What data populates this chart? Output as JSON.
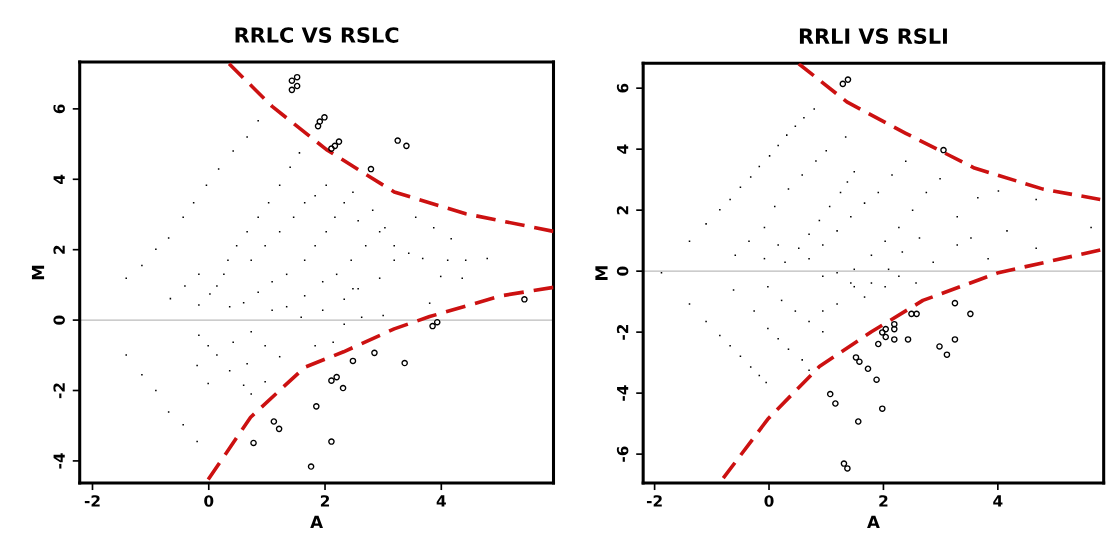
{
  "chart_data": [
    {
      "type": "scatter",
      "title": "RRLC VS RSLC",
      "xlabel": "A",
      "ylabel": "M",
      "xlim": [
        -2.22,
        5.93
      ],
      "ylim": [
        -4.63,
        7.33
      ],
      "xticks": [
        -2,
        0,
        2,
        4
      ],
      "yticks": [
        -4,
        -2,
        0,
        2,
        4,
        6
      ],
      "grid": false,
      "ref_lines": [
        {
          "axis": "y",
          "value": 0,
          "color": "#bbbbbb"
        }
      ],
      "series": [
        {
          "type": "scatter",
          "marker": "square",
          "color": "#000000",
          "x": [
            -1.42,
            -1.15,
            -0.91,
            -0.69,
            -0.44,
            -0.26,
            -0.04,
            0.17,
            0.42,
            0.66,
            0.85,
            -1.42,
            -1.15,
            -0.91,
            -0.69,
            -0.44,
            -0.2,
            -0.66,
            -0.41,
            -0.17,
            -0.17,
            0.02,
            0.14,
            0.26,
            0.33,
            0.48,
            0.66,
            0.85,
            1.03,
            1.22,
            1.4,
            1.56,
            -0.01,
            0.14,
            0.36,
            0.6,
            0.73,
            -0.17,
            -0.2,
            -0.01,
            0.36,
            0.6,
            0.85,
            1.09,
            1.34,
            1.65,
            1.83,
            2.02,
            2.17,
            2.33,
            2.48,
            0.73,
            0.97,
            1.22,
            1.46,
            1.65,
            1.83,
            2.02,
            1.09,
            1.34,
            1.65,
            1.96,
            2.2,
            2.45,
            2.7,
            2.94,
            1.59,
            1.96,
            2.33,
            2.57,
            2.94,
            3.19,
            3.44,
            3.68,
            2.57,
            2.82,
            3.03,
            3.19,
            3.99,
            4.11,
            4.42,
            4.79,
            4.36,
            0.73,
            0.97,
            1.22,
            1.83,
            2.14,
            2.33,
            2.63,
            3.0,
            3.8,
            0.97,
            0.66,
            0.42,
            3.56,
            2.48,
            3.87,
            4.17
          ],
          "values": [
            1.19,
            1.55,
            2.01,
            2.33,
            2.92,
            3.33,
            3.83,
            4.29,
            4.8,
            5.2,
            5.66,
            -0.99,
            -1.55,
            -2.0,
            -2.61,
            -2.97,
            -3.45,
            0.61,
            0.97,
            1.3,
            0.43,
            0.74,
            0.97,
            1.3,
            1.7,
            2.11,
            2.51,
            2.92,
            3.33,
            3.83,
            4.34,
            4.75,
            -0.73,
            -0.99,
            -1.44,
            -1.85,
            -2.1,
            -0.43,
            -1.29,
            -1.8,
            0.38,
            0.49,
            0.79,
            1.09,
            1.3,
            1.7,
            2.11,
            2.51,
            2.92,
            3.33,
            3.63,
            1.7,
            2.11,
            2.51,
            2.92,
            3.33,
            3.53,
            3.83,
            0.28,
            0.38,
            0.69,
            1.09,
            1.3,
            1.7,
            2.11,
            2.51,
            0.08,
            0.28,
            0.59,
            0.89,
            1.19,
            1.7,
            1.9,
            1.75,
            2.82,
            3.12,
            2.62,
            2.11,
            1.24,
            1.7,
            1.7,
            1.75,
            1.19,
            -0.33,
            -0.73,
            -1.04,
            -0.73,
            -0.63,
            -0.12,
            0.08,
            0.13,
            0.48,
            -1.75,
            -1.24,
            -0.63,
            2.92,
            0.89,
            2.62,
            2.31
          ]
        },
        {
          "type": "scatter",
          "marker": "circle",
          "color": "#000000",
          "x": [
            1.43,
            1.52,
            1.43,
            1.52,
            1.88,
            1.91,
            1.99,
            2.11,
            2.17,
            2.24,
            3.25,
            3.4,
            2.79,
            5.43,
            3.85,
            3.93,
            2.48,
            2.85,
            3.37,
            2.11,
            2.2,
            2.31,
            1.85,
            1.12,
            1.21,
            0.77,
            2.11,
            1.76
          ],
          "values": [
            6.8,
            6.9,
            6.54,
            6.65,
            5.51,
            5.64,
            5.76,
            4.87,
            4.95,
            5.07,
            5.1,
            4.95,
            4.29,
            0.59,
            -0.17,
            -0.06,
            -1.16,
            -0.93,
            -1.22,
            -1.72,
            -1.62,
            -1.93,
            -2.45,
            -2.88,
            -3.09,
            -3.49,
            -3.45,
            -4.16
          ]
        },
        {
          "type": "line",
          "marker": "none",
          "line_style": "dashed",
          "color": "#cc1111",
          "x": [
            0.35,
            1.09,
            2.02,
            2.7,
            3.19,
            4.42,
            5.93
          ],
          "values": [
            7.28,
            6.07,
            4.85,
            4.14,
            3.64,
            3.02,
            2.52
          ]
        },
        {
          "type": "line",
          "marker": "none",
          "line_style": "dashed",
          "color": "#cc1111",
          "x": [
            -0.01,
            0.72,
            1.65,
            2.32,
            3.19,
            3.8,
            5.03,
            5.93
          ],
          "values": [
            -4.53,
            -2.76,
            -1.34,
            -0.9,
            -0.25,
            0.1,
            0.69,
            0.93
          ]
        }
      ]
    },
    {
      "type": "scatter",
      "title": "RRLI VS RSLI",
      "xlabel": "A",
      "ylabel": "M",
      "xlim": [
        -2.2,
        5.85
      ],
      "ylim": [
        -6.95,
        6.82
      ],
      "xticks": [
        -2,
        0,
        2,
        4
      ],
      "yticks": [
        -6,
        -4,
        -2,
        0,
        2,
        4,
        6
      ],
      "grid": false,
      "ref_lines": [
        {
          "axis": "y",
          "value": 0,
          "color": "#bbbbbb"
        }
      ],
      "series": [
        {
          "type": "scatter",
          "marker": "square",
          "color": "#000000",
          "x": [
            -1.88,
            -1.39,
            -1.1,
            -0.86,
            -0.68,
            -0.5,
            -0.32,
            -0.17,
            0.01,
            0.16,
            0.31,
            0.46,
            0.61,
            0.79,
            -1.39,
            -1.1,
            -0.86,
            -0.68,
            -0.5,
            -0.32,
            -0.17,
            -0.05,
            -0.59,
            -0.35,
            -0.08,
            0.16,
            0.28,
            0.52,
            0.7,
            0.88,
            1.06,
            1.25,
            1.37,
            1.49,
            1.34,
            1.0,
            0.82,
            0.58,
            0.34,
            0.1,
            -0.08,
            -0.02,
            0.22,
            0.46,
            0.7,
            0.94,
            -0.62,
            -0.26,
            -0.02,
            0.16,
            0.34,
            0.58,
            0.7,
            0.7,
            0.94,
            1.19,
            1.43,
            1.67,
            1.91,
            2.15,
            2.39,
            0.94,
            1.19,
            1.49,
            1.79,
            2.03,
            2.27,
            2.51,
            2.75,
            2.99,
            1.49,
            1.79,
            2.09,
            2.33,
            2.63,
            2.87,
            3.29,
            3.29,
            3.53,
            3.65,
            3.83,
            4.01,
            4.16,
            4.67,
            4.67,
            5.63,
            0.94,
            1.19,
            1.43,
            1.67,
            2.03,
            2.27,
            2.57
          ],
          "values": [
            -0.05,
            0.98,
            1.55,
            2.01,
            2.35,
            2.75,
            3.09,
            3.43,
            3.78,
            4.12,
            4.46,
            4.75,
            5.03,
            5.32,
            -1.08,
            -1.65,
            -2.11,
            -2.45,
            -2.79,
            -3.14,
            -3.42,
            -3.65,
            0.52,
            0.98,
            0.41,
            0.86,
            0.29,
            0.75,
            1.21,
            1.66,
            2.12,
            2.58,
            2.92,
            3.26,
            4.4,
            3.95,
            3.61,
            3.15,
            2.69,
            2.12,
            1.43,
            -0.51,
            -0.96,
            -1.31,
            -1.65,
            -1.99,
            -0.62,
            -1.31,
            -1.88,
            -2.22,
            -2.56,
            -2.91,
            -3.25,
            0.41,
            0.86,
            1.32,
            1.78,
            2.23,
            2.58,
            3.15,
            3.6,
            -0.17,
            -0.05,
            0.06,
            0.52,
            0.98,
            1.43,
            2.0,
            2.58,
            3.03,
            -0.51,
            -0.39,
            0.06,
            0.63,
            1.09,
            0.29,
            1.78,
            0.86,
            1.09,
            2.41,
            0.41,
            2.63,
            1.32,
            2.35,
            0.75,
            1.43,
            -1.31,
            -1.08,
            -0.39,
            -0.85,
            -0.51,
            -0.17,
            -0.39
          ]
        },
        {
          "type": "scatter",
          "marker": "circle",
          "color": "#000000",
          "x": [
            1.29,
            1.38,
            3.05,
            3.25,
            3.52,
            2.49,
            2.58,
            2.19,
            2.19,
            2.04,
            1.98,
            2.04,
            2.19,
            2.43,
            1.91,
            2.98,
            3.25,
            3.11,
            1.52,
            1.58,
            1.73,
            1.88,
            1.07,
            1.16,
            1.98,
            1.56,
            1.31,
            1.37
          ],
          "values": [
            6.14,
            6.28,
            3.97,
            -1.05,
            -1.4,
            -1.4,
            -1.4,
            -1.74,
            -1.9,
            -1.9,
            -2.01,
            -2.16,
            -2.24,
            -2.24,
            -2.39,
            -2.47,
            -2.24,
            -2.74,
            -2.83,
            -2.97,
            -3.2,
            -3.56,
            -4.03,
            -4.34,
            -4.51,
            -4.93,
            -6.31,
            -6.47
          ]
        },
        {
          "type": "line",
          "marker": "none",
          "line_style": "dashed",
          "color": "#cc1111",
          "x": [
            0.52,
            1.36,
            2.39,
            3.59,
            4.79,
            5.79
          ],
          "values": [
            6.8,
            5.55,
            4.52,
            3.38,
            2.69,
            2.35
          ]
        },
        {
          "type": "line",
          "marker": "none",
          "line_style": "dashed",
          "color": "#cc1111",
          "x": [
            -0.8,
            -0.02,
            0.88,
            1.79,
            2.69,
            4.01,
            5.79
          ],
          "values": [
            -6.79,
            -4.85,
            -3.13,
            -1.99,
            -0.96,
            -0.05,
            0.69
          ]
        }
      ]
    }
  ]
}
